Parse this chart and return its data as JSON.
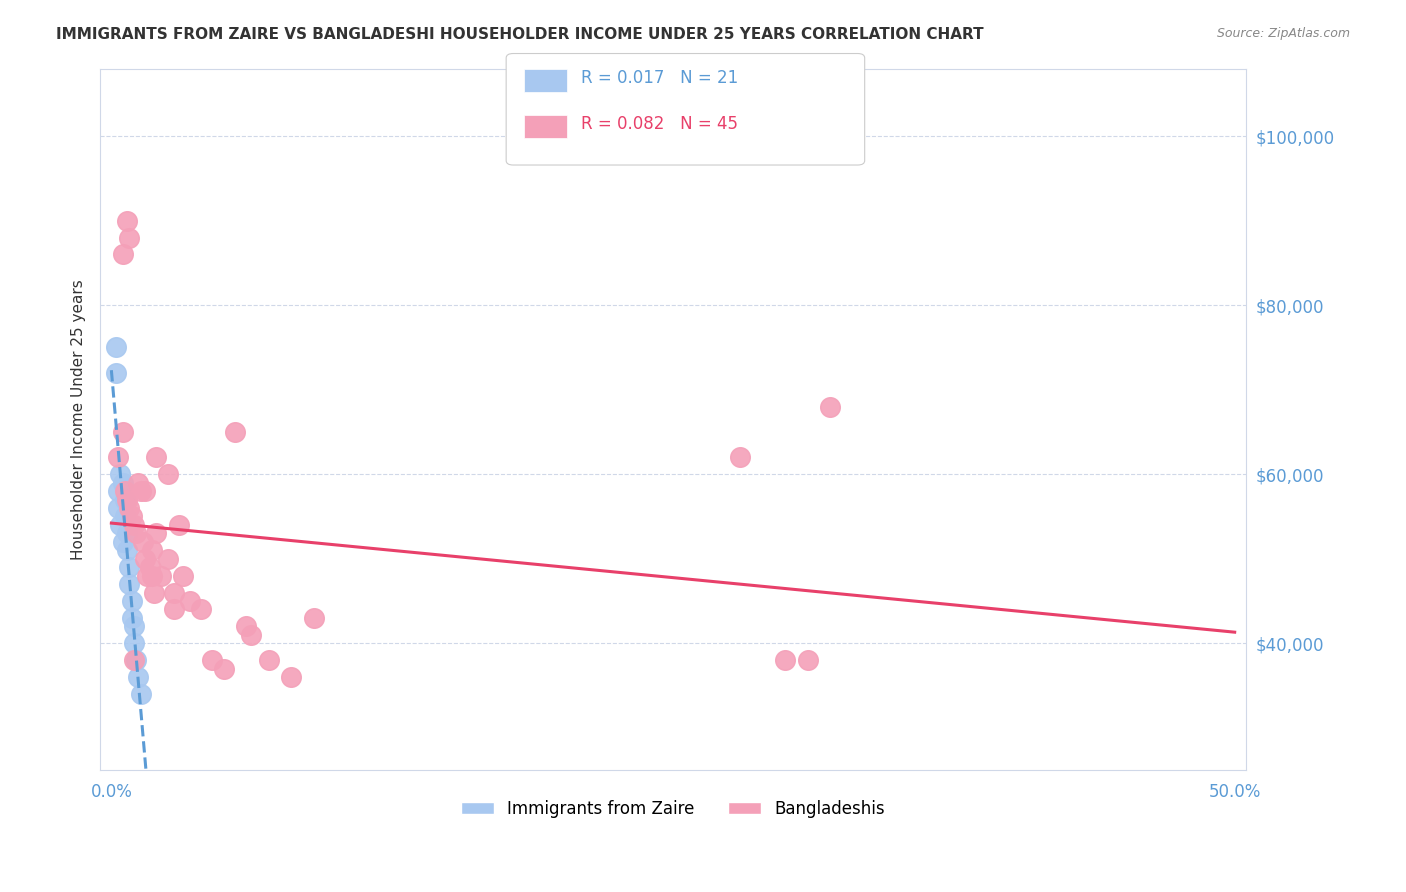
{
  "title": "IMMIGRANTS FROM ZAIRE VS BANGLADESHI HOUSEHOLDER INCOME UNDER 25 YEARS CORRELATION CHART",
  "source": "Source: ZipAtlas.com",
  "ylabel": "Householder Income Under 25 years",
  "zaire_R": 0.017,
  "zaire_N": 21,
  "bangla_R": 0.082,
  "bangla_N": 45,
  "zaire_color": "#a8c8f0",
  "bangla_color": "#f4a0b8",
  "zaire_line_color": "#5b9bd5",
  "bangla_line_color": "#e8406a",
  "legend_zaire": "Immigrants from Zaire",
  "legend_bangla": "Bangladeshis",
  "background_color": "#ffffff",
  "grid_color": "#d0d8e8",
  "axis_color": "#5b9bd5",
  "yticks": [
    40000,
    60000,
    80000,
    100000
  ],
  "ytick_labels": [
    "$40,000",
    "$60,000",
    "$80,000",
    "$100,000"
  ],
  "zaire_x": [
    0.002,
    0.003,
    0.004,
    0.005,
    0.006,
    0.006,
    0.007,
    0.007,
    0.008,
    0.008,
    0.009,
    0.009,
    0.01,
    0.01,
    0.011,
    0.012,
    0.013,
    0.002,
    0.003,
    0.004,
    0.005
  ],
  "zaire_y": [
    75000,
    58000,
    60000,
    59000,
    57000,
    55000,
    53000,
    51000,
    49000,
    47000,
    45000,
    43000,
    42000,
    40000,
    38000,
    36000,
    34000,
    72000,
    56000,
    54000,
    52000
  ],
  "bangla_x": [
    0.003,
    0.005,
    0.006,
    0.007,
    0.008,
    0.009,
    0.01,
    0.011,
    0.012,
    0.013,
    0.014,
    0.015,
    0.016,
    0.017,
    0.018,
    0.019,
    0.02,
    0.022,
    0.025,
    0.028,
    0.03,
    0.032,
    0.035,
    0.04,
    0.045,
    0.05,
    0.06,
    0.07,
    0.08,
    0.09,
    0.025,
    0.02,
    0.015,
    0.028,
    0.018,
    0.055,
    0.062,
    0.3,
    0.31,
    0.28,
    0.007,
    0.008,
    0.005,
    0.32,
    0.01
  ],
  "bangla_y": [
    62000,
    65000,
    58000,
    57000,
    56000,
    55000,
    54000,
    53000,
    59000,
    58000,
    52000,
    50000,
    48000,
    49000,
    51000,
    46000,
    53000,
    48000,
    50000,
    46000,
    54000,
    48000,
    45000,
    44000,
    38000,
    37000,
    42000,
    38000,
    36000,
    43000,
    60000,
    62000,
    58000,
    44000,
    48000,
    65000,
    41000,
    38000,
    38000,
    62000,
    90000,
    88000,
    86000,
    68000,
    38000
  ]
}
